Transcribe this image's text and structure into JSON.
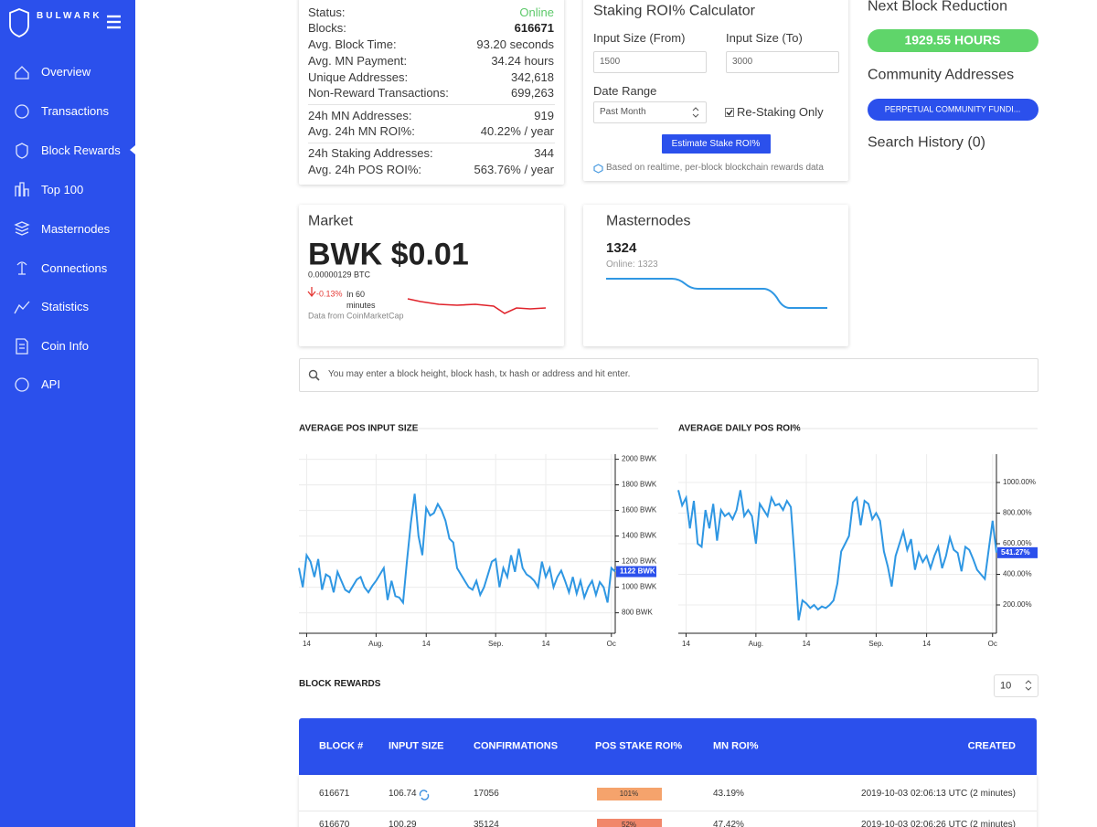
{
  "sidebar": {
    "brand": "BULWARK",
    "nav": [
      "Overview",
      "Transactions",
      "Block Rewards",
      "Top 100",
      "Masternodes",
      "Connections",
      "Statistics",
      "Coin Info",
      "API"
    ]
  },
  "stats": {
    "rows": [
      {
        "label": "Status:",
        "value": "Online"
      },
      {
        "label": "Blocks:",
        "value": "616671"
      },
      {
        "label": "Avg. Block Time:",
        "value": "93.20 seconds"
      },
      {
        "label": "Avg. MN Payment:",
        "value": "34.24 hours"
      },
      {
        "label": "Unique Addresses:",
        "value": "342,618"
      },
      {
        "label": "Non-Reward Transactions:",
        "value": "699,263"
      },
      {
        "label": "24h MN Addresses:",
        "value": "919"
      },
      {
        "label": "Avg. 24h MN ROI%:",
        "value": "40.22% / year"
      },
      {
        "label": "24h Staking Addresses:",
        "value": "344"
      },
      {
        "label": "Avg. 24h POS ROI%:",
        "value": "563.76% / year"
      }
    ]
  },
  "calculator": {
    "title": "Staking ROI% Calculator",
    "from_label": "Input Size (From)",
    "to_label": "Input Size (To)",
    "from_value": "1500",
    "to_value": "3000",
    "range_label": "Date Range",
    "range_value": "Past Month",
    "restaking_label": "Re-Staking Only",
    "restaking_checked": true,
    "button": "Estimate Stake ROI%",
    "note": "Based on realtime, per-block blockchain rewards data"
  },
  "side": {
    "reduction_title": "Next Block Reduction",
    "reduction_value": "1929.55 HOURS",
    "community_title": "Community Addresses",
    "community_button": "PERPETUAL COMMUNITY FUNDI...",
    "search_history": "Search History (0)"
  },
  "market": {
    "title": "Market",
    "price": "BWK $0.01",
    "btc": "0.00000129 BTC",
    "change": "-0.13%",
    "period": "In 60 minutes",
    "source": "Data from CoinMarketCap"
  },
  "masternodes": {
    "title": "Masternodes",
    "count": "1324",
    "online": "Online: 1323"
  },
  "search": {
    "placeholder": "You may enter a block height, block hash, tx hash or address and hit enter."
  },
  "chart_data": [
    {
      "type": "line",
      "title": "AVERAGE POS INPUT SIZE",
      "color": "#2f97e3",
      "grid": true,
      "categories": [
        null,
        null,
        "14",
        null,
        null,
        null,
        null,
        null,
        null,
        null,
        null,
        null,
        null,
        null,
        null,
        null,
        null,
        null,
        null,
        null,
        "Aug.",
        null,
        null,
        null,
        null,
        null,
        null,
        null,
        null,
        null,
        null,
        null,
        null,
        "14",
        null,
        null,
        null,
        null,
        null,
        null,
        null,
        null,
        null,
        null,
        null,
        null,
        null,
        null,
        null,
        null,
        null,
        "Sep.",
        null,
        null,
        null,
        null,
        null,
        null,
        null,
        null,
        null,
        null,
        null,
        null,
        "14",
        null,
        null,
        null,
        null,
        null,
        null,
        null,
        null,
        null,
        null,
        null,
        null,
        null,
        null,
        null,
        null,
        "Oc",
        null
      ],
      "values": [
        1150,
        1000,
        1250,
        1200,
        1080,
        1220,
        980,
        1100,
        1080,
        960,
        1120,
        1050,
        980,
        960,
        1010,
        1060,
        1080,
        1000,
        960,
        1010,
        1050,
        1100,
        1150,
        900,
        1050,
        930,
        920,
        880,
        1200,
        1500,
        1730,
        1400,
        1250,
        1620,
        1560,
        1580,
        1650,
        1600,
        1520,
        1380,
        1350,
        1150,
        1100,
        1050,
        1000,
        980,
        1050,
        940,
        1000,
        1100,
        1200,
        1220,
        1000,
        1150,
        1080,
        1250,
        1120,
        1300,
        1150,
        1100,
        1080,
        1050,
        1000,
        1200,
        1080,
        1150,
        1000,
        1080,
        1130,
        1050,
        960,
        1080,
        950,
        1050,
        920,
        1000,
        1050,
        940,
        1040,
        1000,
        880,
        1150,
        1122
      ],
      "ylim": [
        640,
        2040
      ],
      "yticks": [
        {
          "value": 800,
          "label": "800 BWK"
        },
        {
          "value": 1000,
          "label": "1000 BWK"
        },
        {
          "value": 1200,
          "label": "1200 BWK"
        },
        {
          "value": 1400,
          "label": "1400 BWK"
        },
        {
          "value": 1600,
          "label": "1600 BWK"
        },
        {
          "value": 1800,
          "label": "1800 BWK"
        },
        {
          "value": 2000,
          "label": "2000 BWK"
        }
      ],
      "current": {
        "value": 1122,
        "label": "1122 BWK"
      }
    },
    {
      "type": "line",
      "title": "AVERAGE DAILY POS ROI%",
      "color": "#2f97e3",
      "grid": true,
      "categories": [
        null,
        null,
        "14",
        null,
        null,
        null,
        null,
        null,
        null,
        null,
        null,
        null,
        null,
        null,
        null,
        null,
        null,
        null,
        null,
        null,
        "Aug.",
        null,
        null,
        null,
        null,
        null,
        null,
        null,
        null,
        null,
        null,
        null,
        null,
        "14",
        null,
        null,
        null,
        null,
        null,
        null,
        null,
        null,
        null,
        null,
        null,
        null,
        null,
        null,
        null,
        null,
        null,
        "Sep.",
        null,
        null,
        null,
        null,
        null,
        null,
        null,
        null,
        null,
        null,
        null,
        null,
        "14",
        null,
        null,
        null,
        null,
        null,
        null,
        null,
        null,
        null,
        null,
        null,
        null,
        null,
        null,
        null,
        null,
        "Oc",
        null
      ],
      "values": [
        950,
        850,
        900,
        700,
        880,
        600,
        580,
        820,
        700,
        860,
        620,
        820,
        780,
        800,
        760,
        820,
        950,
        780,
        820,
        780,
        600,
        860,
        820,
        780,
        900,
        850,
        860,
        820,
        880,
        840,
        500,
        100,
        230,
        210,
        180,
        200,
        170,
        190,
        180,
        200,
        230,
        340,
        550,
        600,
        650,
        870,
        900,
        720,
        880,
        860,
        760,
        800,
        750,
        550,
        450,
        320,
        520,
        600,
        680,
        560,
        630,
        430,
        540,
        480,
        520,
        440,
        520,
        580,
        440,
        520,
        640,
        560,
        540,
        420,
        580,
        560,
        500,
        430,
        400,
        370,
        560,
        750,
        541.27
      ],
      "ylim": [
        15,
        1185
      ],
      "yticks": [
        {
          "value": 200,
          "label": "200.00%"
        },
        {
          "value": 400,
          "label": "400.00%"
        },
        {
          "value": 600,
          "label": "600.00%"
        },
        {
          "value": 800,
          "label": "800.00%"
        },
        {
          "value": 1000,
          "label": "1000.00%"
        }
      ],
      "current": {
        "value": 541.27,
        "label": "541.27%"
      }
    }
  ],
  "block_rewards": {
    "title": "BLOCK REWARDS",
    "page_size": "10",
    "table": {
      "headers": [
        "BLOCK #",
        "INPUT SIZE",
        "CONFIRMATIONS",
        "POS STAKE ROI%",
        "MN ROI%",
        "CREATED"
      ],
      "rows": [
        [
          "616671",
          "106.74",
          "17056",
          "101%",
          "43.19%",
          "2019-10-03 02:06:13 UTC (2 minutes)"
        ],
        [
          "616670",
          "100.29",
          "35124",
          "52%",
          "47.42%",
          "2019-10-03 02:06:26 UTC (2 minutes)"
        ]
      ],
      "badge_colors": [
        "#f5a36c",
        "#f1876b"
      ]
    }
  }
}
